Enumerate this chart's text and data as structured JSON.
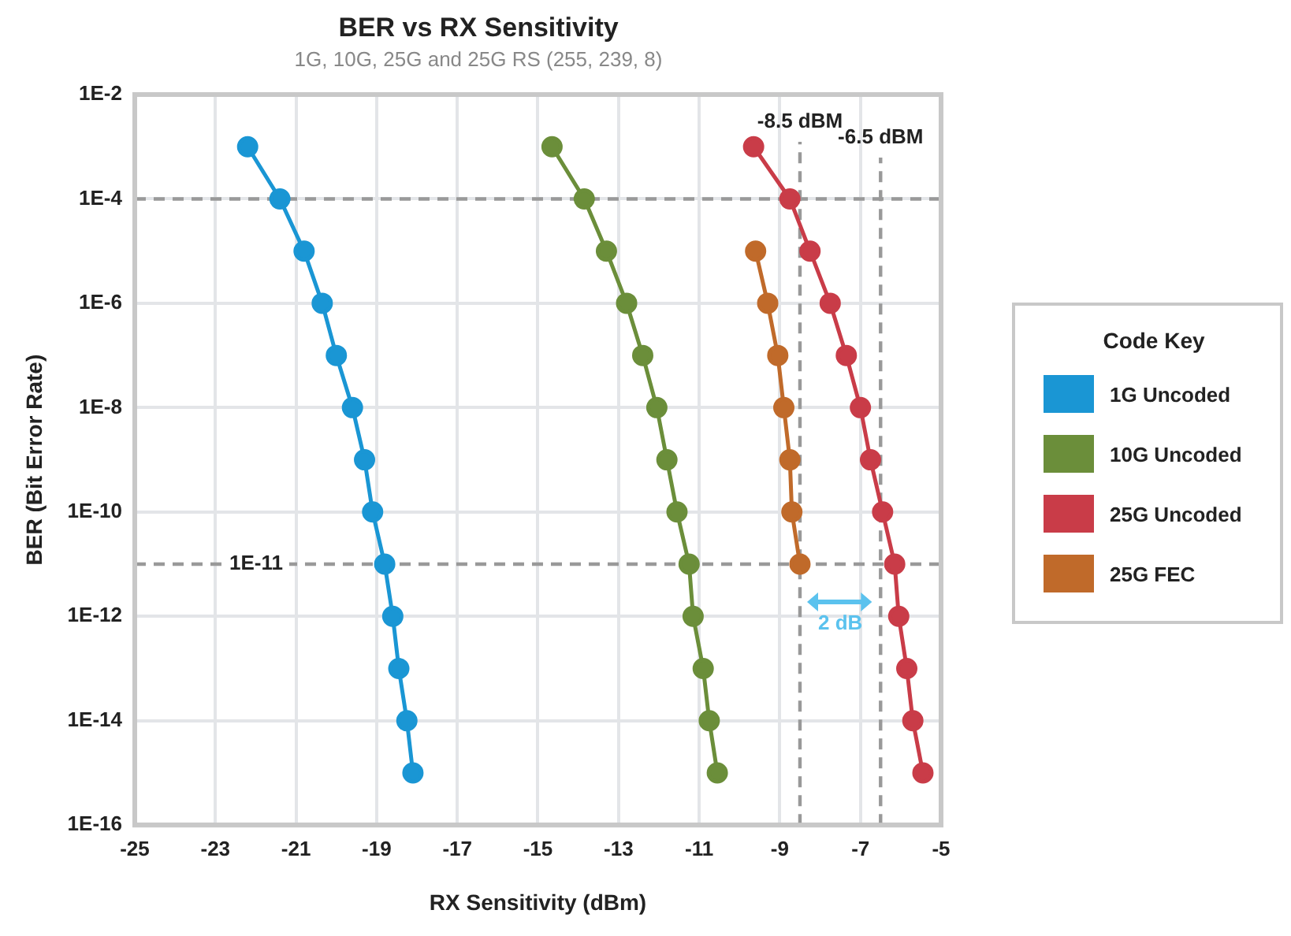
{
  "chart_data": {
    "type": "line",
    "title": "BER vs RX Sensitivity",
    "subtitle": "1G, 10G, 25G and 25G RS (255, 239, 8)",
    "xlabel": "RX Sensitivity (dBm)",
    "ylabel": "BER (Bit Error Rate)",
    "legend_title": "Code Key",
    "legend": "right",
    "grid": true,
    "log": "y",
    "marker": "circle",
    "line_style": "solid",
    "xlim": [
      -25,
      -5
    ],
    "xticks": [
      -25,
      -23,
      -21,
      -19,
      -17,
      -15,
      -13,
      -11,
      -9,
      -7,
      -5
    ],
    "ylim": [
      1e-16,
      0.01
    ],
    "yticks": [
      {
        "value": 1e-16,
        "label": "1E-16"
      },
      {
        "value": 1e-14,
        "label": "1E-14"
      },
      {
        "value": 1e-12,
        "label": "1E-12"
      },
      {
        "value": 1e-10,
        "label": "1E-10"
      },
      {
        "value": 1e-08,
        "label": "1E-8"
      },
      {
        "value": 1e-06,
        "label": "1E-6"
      },
      {
        "value": 0.0001,
        "label": "1E-4"
      },
      {
        "value": 0.01,
        "label": "1E-2"
      }
    ],
    "series": [
      {
        "name": "1G Uncoded",
        "color": "#1a96d4",
        "x": [
          -22.2,
          -21.4,
          -20.8,
          -20.35,
          -20.0,
          -19.6,
          -19.3,
          -19.1,
          -18.8,
          -18.6,
          -18.45,
          -18.25,
          -18.1
        ],
        "values": [
          0.001,
          0.0001,
          1e-05,
          1e-06,
          1e-07,
          1e-08,
          1e-09,
          1e-10,
          1e-11,
          1e-12,
          1e-13,
          1e-14,
          1e-15
        ]
      },
      {
        "name": "10G Uncoded",
        "color": "#6b8e3a",
        "x": [
          -14.65,
          -13.85,
          -13.3,
          -12.8,
          -12.4,
          -12.05,
          -11.8,
          -11.55,
          -11.25,
          -11.15,
          -10.9,
          -10.75,
          -10.55
        ],
        "values": [
          0.001,
          0.0001,
          1e-05,
          1e-06,
          1e-07,
          1e-08,
          1e-09,
          1e-10,
          1e-11,
          1e-12,
          1e-13,
          1e-14,
          1e-15
        ]
      },
      {
        "name": "25G Uncoded",
        "color": "#c93c48",
        "x": [
          -9.65,
          -8.75,
          -8.25,
          -7.75,
          -7.35,
          -7.0,
          -6.75,
          -6.45,
          -6.15,
          -6.05,
          -5.85,
          -5.7,
          -5.45
        ],
        "values": [
          0.001,
          0.0001,
          1e-05,
          1e-06,
          1e-07,
          1e-08,
          1e-09,
          1e-10,
          1e-11,
          1e-12,
          1e-13,
          1e-14,
          1e-15
        ]
      },
      {
        "name": "25G FEC",
        "color": "#c06a2a",
        "x": [
          -9.6,
          -9.3,
          -9.05,
          -8.9,
          -8.75,
          -8.7,
          -8.5
        ],
        "values": [
          1e-05,
          1e-06,
          1e-07,
          1e-08,
          1e-09,
          1e-10,
          1e-11
        ]
      }
    ],
    "ref_lines": [
      {
        "axis": "y",
        "value": 0.0001,
        "label": null,
        "color": "#999999",
        "line_style": "dashed"
      },
      {
        "axis": "y",
        "value": 1e-11,
        "label": "1E-11",
        "color": "#999999",
        "line_style": "dashed"
      },
      {
        "axis": "x",
        "value": -8.5,
        "label": "-8.5 dBM",
        "color": "#999999",
        "line_style": "dashed"
      },
      {
        "axis": "x",
        "value": -6.5,
        "label": "-6.5 dBM",
        "color": "#999999",
        "line_style": "dashed"
      }
    ],
    "annotations": [
      "2 dB"
    ]
  }
}
